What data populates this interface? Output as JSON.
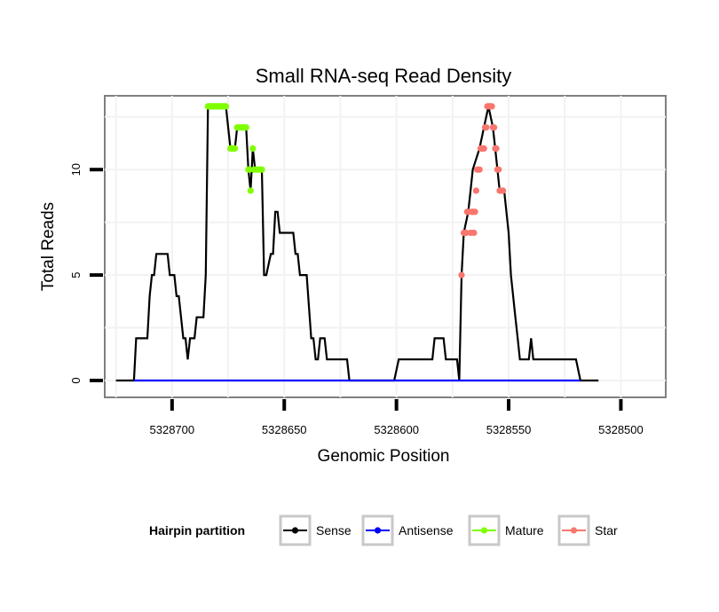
{
  "chart_data": {
    "type": "line",
    "title": "Small RNA-seq Read Density",
    "xlabel": "Genomic Position",
    "ylabel": "Total Reads",
    "x_reversed": true,
    "xlim": [
      5328730,
      5328480
    ],
    "ylim": [
      -0.8,
      13.5
    ],
    "x_ticks": [
      5328700,
      5328650,
      5328600,
      5328550,
      5328500
    ],
    "x_tick_labels": [
      "5328700",
      "5328650",
      "5328600",
      "5328550",
      "5328500"
    ],
    "y_ticks": [
      0,
      5,
      10
    ],
    "y_tick_labels": [
      "0",
      "5",
      "10"
    ],
    "legend": {
      "title": "Hairpin partition",
      "position": "bottom",
      "entries": [
        {
          "label": "Sense",
          "color": "#000000"
        },
        {
          "label": "Antisense",
          "color": "#0000ff"
        },
        {
          "label": "Mature",
          "color": "#7fff00"
        },
        {
          "label": "Star",
          "color": "#f8766d"
        }
      ]
    },
    "series": [
      {
        "name": "Sense",
        "color": "#000000",
        "points": [
          [
            5328725,
            0
          ],
          [
            5328717,
            0
          ],
          [
            5328716,
            2
          ],
          [
            5328711,
            2
          ],
          [
            5328710,
            4
          ],
          [
            5328709,
            5
          ],
          [
            5328708,
            5
          ],
          [
            5328707,
            6
          ],
          [
            5328702,
            6
          ],
          [
            5328701,
            5
          ],
          [
            5328699,
            5
          ],
          [
            5328698,
            4
          ],
          [
            5328697,
            4
          ],
          [
            5328695,
            2
          ],
          [
            5328694,
            2
          ],
          [
            5328693,
            1
          ],
          [
            5328692,
            2
          ],
          [
            5328690,
            2
          ],
          [
            5328689,
            3
          ],
          [
            5328686,
            3
          ],
          [
            5328685,
            5
          ],
          [
            5328684,
            13
          ],
          [
            5328676,
            13
          ],
          [
            5328674,
            11
          ],
          [
            5328672,
            11
          ],
          [
            5328671,
            12
          ],
          [
            5328667,
            12
          ],
          [
            5328666,
            10
          ],
          [
            5328665,
            9
          ],
          [
            5328664,
            11
          ],
          [
            5328663,
            10
          ],
          [
            5328660,
            10
          ],
          [
            5328659,
            5
          ],
          [
            5328658,
            5
          ],
          [
            5328656,
            6
          ],
          [
            5328655,
            6
          ],
          [
            5328654,
            8
          ],
          [
            5328653,
            8
          ],
          [
            5328652,
            7
          ],
          [
            5328646,
            7
          ],
          [
            5328645,
            6
          ],
          [
            5328644,
            6
          ],
          [
            5328643,
            5
          ],
          [
            5328640,
            5
          ],
          [
            5328638,
            2
          ],
          [
            5328637,
            2
          ],
          [
            5328636,
            1
          ],
          [
            5328635,
            1
          ],
          [
            5328634,
            2
          ],
          [
            5328632,
            2
          ],
          [
            5328631,
            1
          ],
          [
            5328622,
            1
          ],
          [
            5328621,
            0
          ],
          [
            5328601,
            0
          ],
          [
            5328599,
            1
          ],
          [
            5328584,
            1
          ],
          [
            5328583,
            2
          ],
          [
            5328579,
            2
          ],
          [
            5328578,
            1
          ],
          [
            5328573,
            1
          ],
          [
            5328572,
            0
          ],
          [
            5328571,
            5
          ],
          [
            5328570,
            7
          ],
          [
            5328568,
            8
          ],
          [
            5328567,
            9
          ],
          [
            5328566,
            10
          ],
          [
            5328563,
            11
          ],
          [
            5328561,
            12
          ],
          [
            5328559,
            13
          ],
          [
            5328557,
            12
          ],
          [
            5328556,
            11
          ],
          [
            5328555,
            10
          ],
          [
            5328554,
            9
          ],
          [
            5328552,
            9
          ],
          [
            5328550,
            7
          ],
          [
            5328549,
            5
          ],
          [
            5328547,
            3
          ],
          [
            5328546,
            2
          ],
          [
            5328545,
            1
          ],
          [
            5328542,
            1
          ],
          [
            5328541,
            1
          ],
          [
            5328540,
            2
          ],
          [
            5328539,
            1
          ],
          [
            5328520,
            1
          ],
          [
            5328518,
            0
          ],
          [
            5328510,
            0
          ]
        ]
      },
      {
        "name": "Antisense",
        "color": "#0000ff",
        "points": [
          [
            5328717,
            0
          ],
          [
            5328518,
            0
          ]
        ]
      }
    ],
    "point_series": [
      {
        "name": "Mature",
        "color": "#7fff00",
        "points": [
          [
            5328684,
            13
          ],
          [
            5328683.5,
            13
          ],
          [
            5328683,
            13
          ],
          [
            5328682.5,
            13
          ],
          [
            5328682,
            13
          ],
          [
            5328681.5,
            13
          ],
          [
            5328681,
            13
          ],
          [
            5328680.5,
            13
          ],
          [
            5328680,
            13
          ],
          [
            5328679.5,
            13
          ],
          [
            5328679,
            13
          ],
          [
            5328678.5,
            13
          ],
          [
            5328678,
            13
          ],
          [
            5328677.5,
            13
          ],
          [
            5328677,
            13
          ],
          [
            5328676.5,
            13
          ],
          [
            5328676,
            13
          ],
          [
            5328674,
            11
          ],
          [
            5328673.5,
            11
          ],
          [
            5328673,
            11
          ],
          [
            5328672.5,
            11
          ],
          [
            5328672,
            11
          ],
          [
            5328671,
            12
          ],
          [
            5328670.5,
            12
          ],
          [
            5328670,
            12
          ],
          [
            5328669.5,
            12
          ],
          [
            5328669,
            12
          ],
          [
            5328668.5,
            12
          ],
          [
            5328668,
            12
          ],
          [
            5328667.5,
            12
          ],
          [
            5328667,
            12
          ],
          [
            5328666,
            10
          ],
          [
            5328665.5,
            10
          ],
          [
            5328665,
            9
          ],
          [
            5328664,
            11
          ],
          [
            5328663.5,
            10
          ],
          [
            5328663,
            10
          ],
          [
            5328662.5,
            10
          ],
          [
            5328662,
            10
          ],
          [
            5328661.5,
            10
          ],
          [
            5328661,
            10
          ],
          [
            5328660.5,
            10
          ],
          [
            5328660,
            10
          ]
        ]
      },
      {
        "name": "Star",
        "color": "#f8766d",
        "points": [
          [
            5328571,
            5
          ],
          [
            5328570,
            7
          ],
          [
            5328569,
            7
          ],
          [
            5328568.5,
            8
          ],
          [
            5328568,
            8
          ],
          [
            5328567,
            7
          ],
          [
            5328566.5,
            8
          ],
          [
            5328566,
            8
          ],
          [
            5328565.5,
            7
          ],
          [
            5328565,
            8
          ],
          [
            5328564.5,
            9
          ],
          [
            5328564,
            10
          ],
          [
            5328563.5,
            10
          ],
          [
            5328563,
            10
          ],
          [
            5328562.5,
            11
          ],
          [
            5328562,
            11
          ],
          [
            5328561.5,
            11
          ],
          [
            5328561,
            11
          ],
          [
            5328560.5,
            12
          ],
          [
            5328560,
            12
          ],
          [
            5328559.5,
            13
          ],
          [
            5328559,
            13
          ],
          [
            5328558.5,
            13
          ],
          [
            5328558,
            13
          ],
          [
            5328557.5,
            13
          ],
          [
            5328557,
            12
          ],
          [
            5328556.5,
            12
          ],
          [
            5328556,
            11
          ],
          [
            5328555.5,
            11
          ],
          [
            5328555,
            10
          ],
          [
            5328554.5,
            10
          ],
          [
            5328554,
            9
          ],
          [
            5328553.5,
            9
          ],
          [
            5328553,
            9
          ],
          [
            5328552.5,
            9
          ]
        ]
      }
    ]
  }
}
